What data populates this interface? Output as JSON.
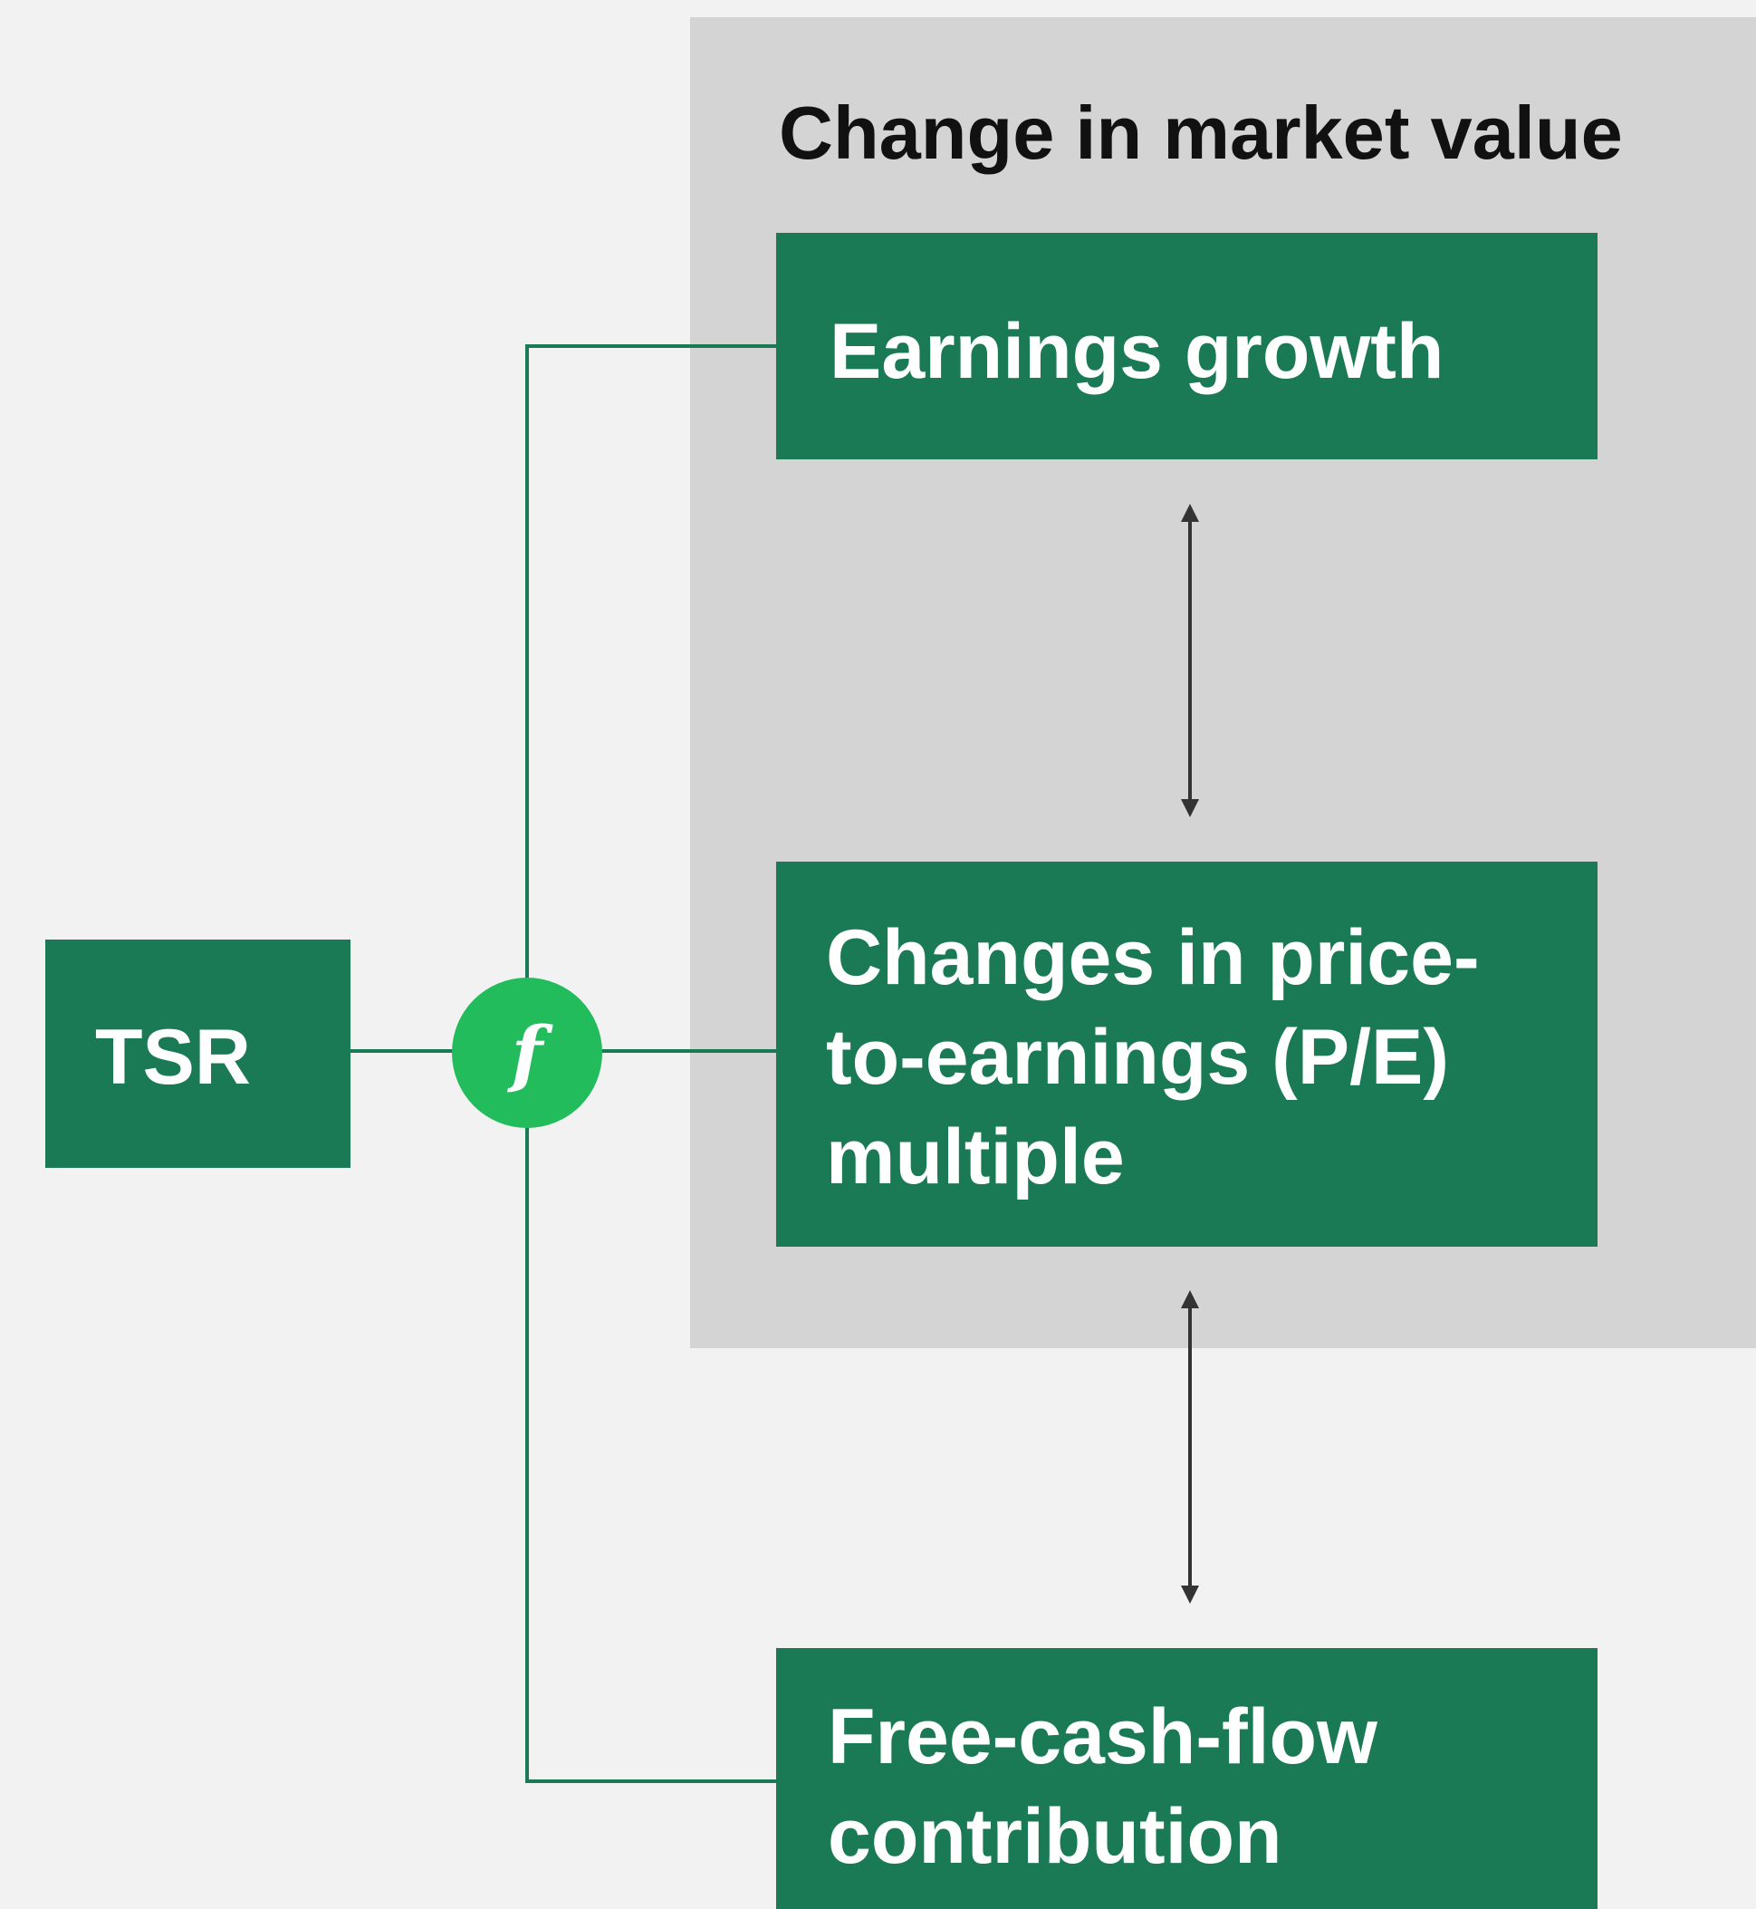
{
  "title": "Change in market value",
  "nodes": [
    {
      "id": "tsr",
      "lines": [
        "TSR"
      ]
    },
    {
      "id": "function",
      "lines": [
        "f"
      ]
    },
    {
      "id": "earnings",
      "lines": [
        "Earnings growth"
      ]
    },
    {
      "id": "pe",
      "lines": [
        "Changes in price-",
        "to-earnings (P/E)",
        "multiple"
      ]
    },
    {
      "id": "fcf",
      "lines": [
        "Free-cash-flow",
        "contribution"
      ]
    }
  ]
}
